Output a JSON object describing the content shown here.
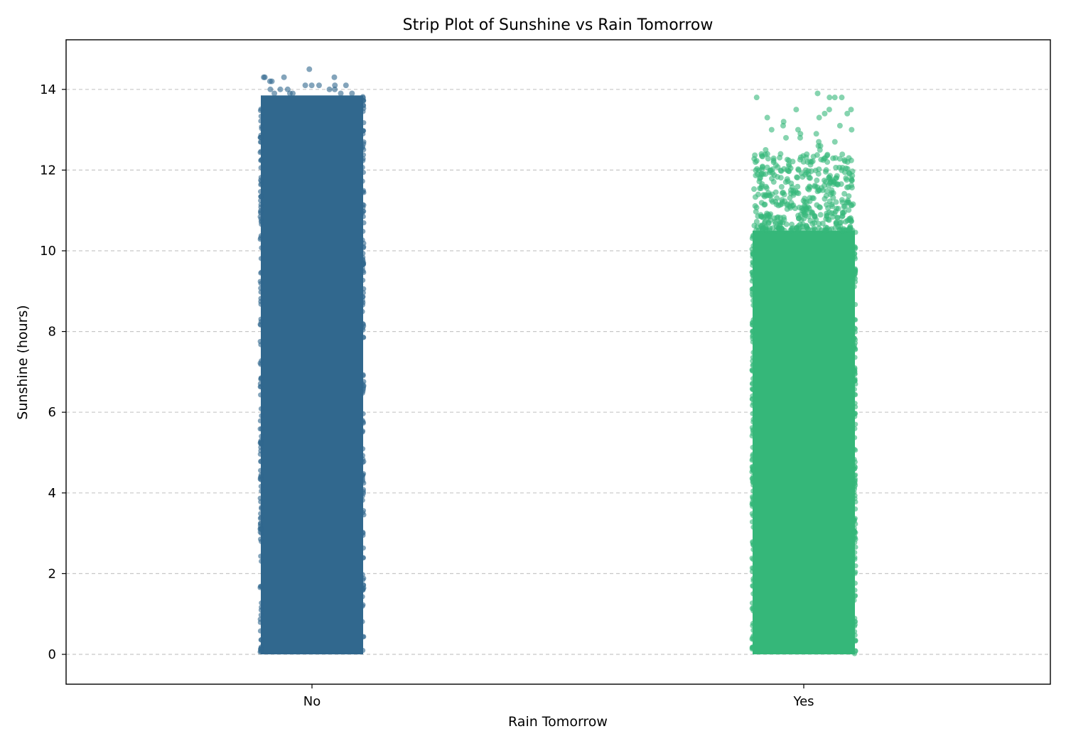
{
  "chart_data": {
    "type": "scatter",
    "subtype": "strip",
    "title": "Strip Plot of Sunshine vs Rain Tomorrow",
    "xlabel": "Rain Tomorrow",
    "ylabel": "Sunshine (hours)",
    "categories": [
      "No",
      "Yes"
    ],
    "yticks": [
      0,
      2,
      4,
      6,
      8,
      10,
      12,
      14
    ],
    "ylim": [
      -0.75,
      15.2
    ],
    "grid": {
      "y": true,
      "style": "dashed",
      "color": "#c7c7c7"
    },
    "series": [
      {
        "category": "No",
        "color": "#31688e",
        "opacity": 0.6,
        "value_range": [
          0,
          14.5
        ],
        "dense_range": [
          0,
          13.85
        ],
        "sparse_top_points": [
          14.5,
          14.3,
          14.3,
          14.3,
          14.3,
          14.2,
          14.2,
          14.1,
          14.1,
          14.1,
          14.1,
          14.1,
          14.0,
          14.0,
          14.0,
          14.0,
          14.0,
          13.9,
          13.9,
          13.9,
          13.9,
          13.9
        ]
      },
      {
        "category": "Yes",
        "color": "#35b779",
        "opacity": 0.6,
        "value_range": [
          0,
          13.9
        ],
        "dense_range": [
          0,
          10.5
        ],
        "sparse_top_points": [
          13.9,
          13.8,
          13.8,
          13.8,
          13.8,
          13.5,
          13.5,
          13.5,
          13.4,
          13.4,
          13.3,
          13.3,
          13.2,
          13.1,
          13.1,
          13.0,
          13.0,
          13.0,
          12.9,
          12.9,
          12.8,
          12.8,
          12.7,
          12.7,
          12.6,
          12.6,
          12.5,
          12.5,
          12.4,
          12.4,
          12.3,
          12.3,
          12.2,
          12.2,
          12.1,
          12.0,
          12.0,
          11.9,
          11.8,
          11.7,
          11.6,
          11.5,
          11.4,
          11.3,
          11.2,
          11.1,
          11.0,
          10.9,
          10.8,
          10.7,
          10.6
        ]
      }
    ]
  }
}
